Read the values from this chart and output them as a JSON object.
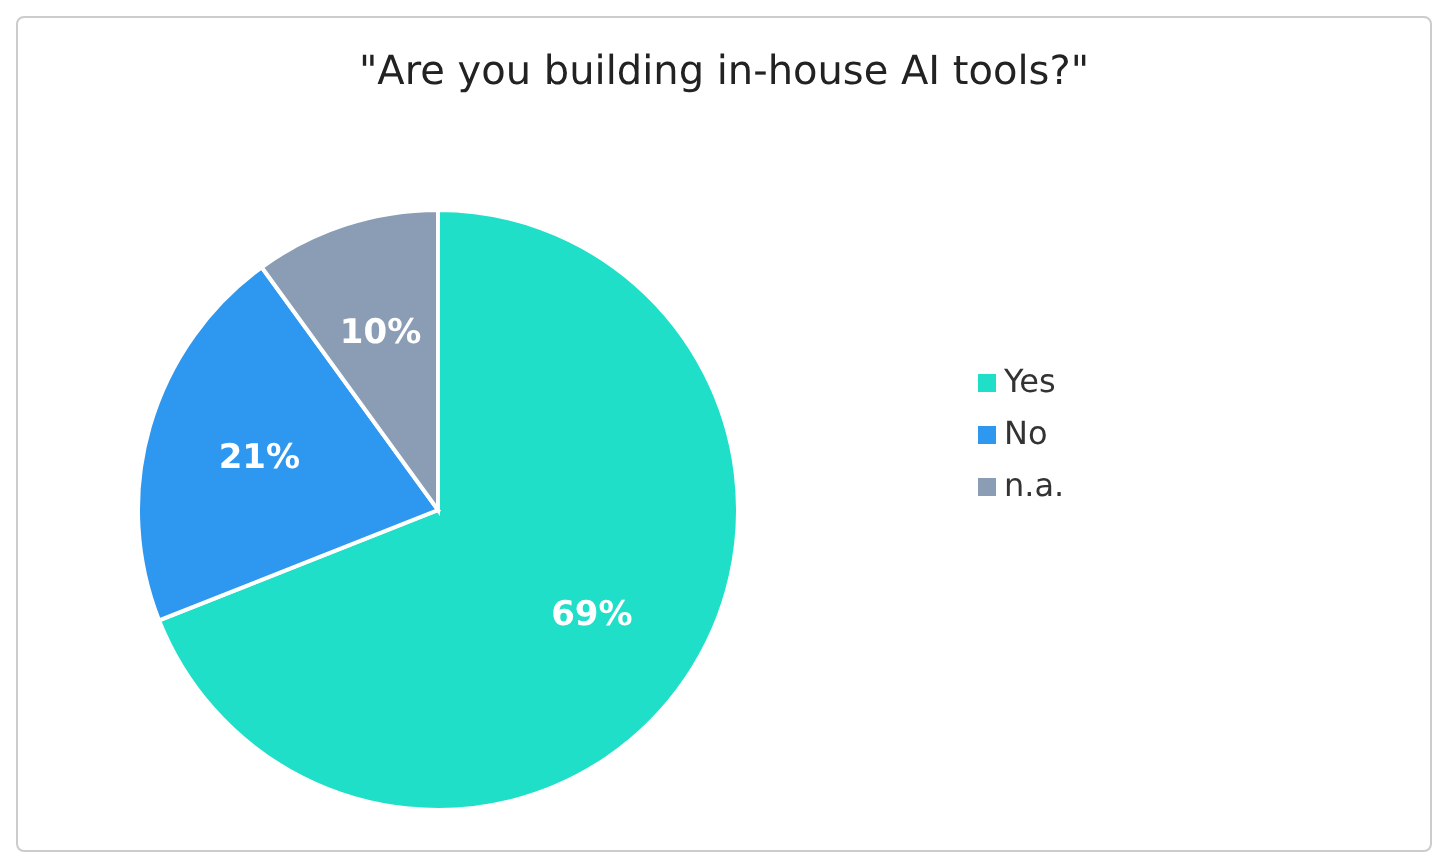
{
  "chart_data": {
    "type": "pie",
    "title": "\"Are you building in-house AI tools?\"",
    "categories": [
      "Yes",
      "No",
      "n.a."
    ],
    "values": [
      69,
      21,
      10
    ],
    "value_labels": [
      "69%",
      "21%",
      "10%"
    ],
    "colors": [
      "#20dfc8",
      "#2e97f0",
      "#8a9db5"
    ],
    "legend": "right"
  }
}
